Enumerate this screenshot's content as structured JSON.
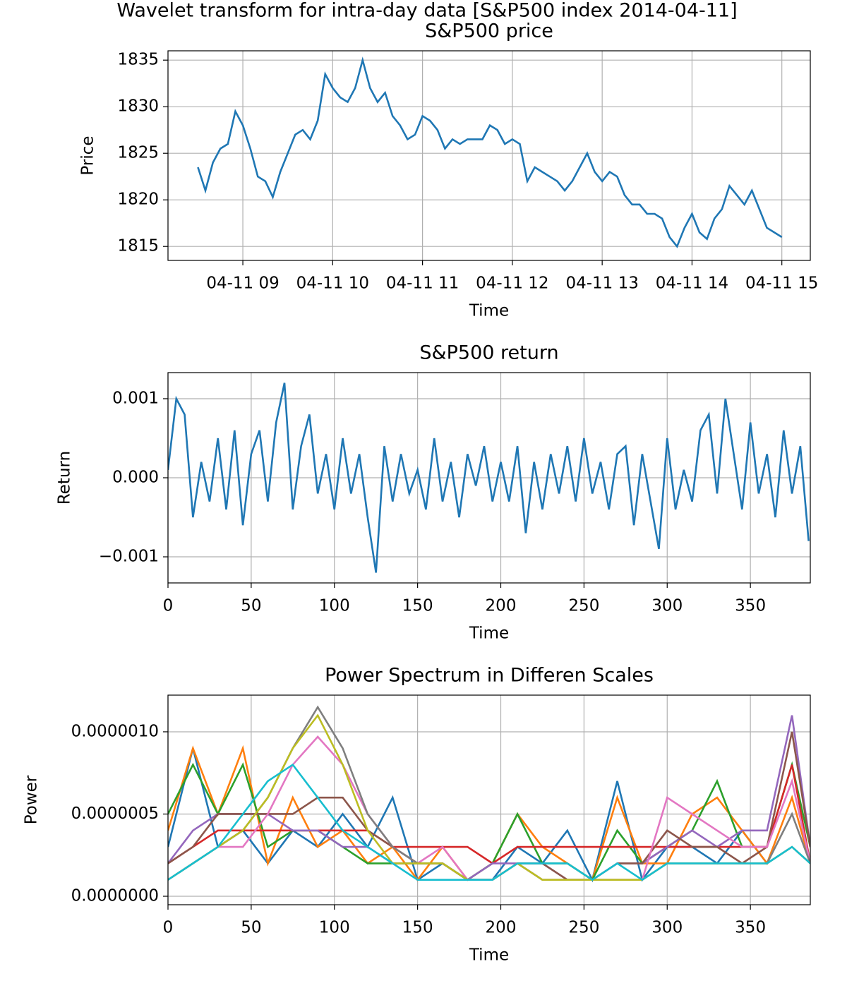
{
  "title": "Wavelet transform for intra-day data [S&P500 index 2014-04-11]",
  "chart_data": [
    {
      "type": "line",
      "title": "S&P500 price",
      "xlabel": "Time",
      "ylabel": "Price",
      "grid": true,
      "x": [
        0,
        5,
        10,
        15,
        20,
        25,
        30,
        35,
        40,
        45,
        50,
        55,
        60,
        65,
        70,
        75,
        80,
        85,
        90,
        95,
        100,
        105,
        110,
        115,
        120,
        125,
        130,
        135,
        140,
        145,
        150,
        155,
        160,
        165,
        170,
        175,
        180,
        185,
        190,
        195,
        200,
        205,
        210,
        215,
        220,
        225,
        230,
        235,
        240,
        245,
        250,
        255,
        260,
        265,
        270,
        275,
        280,
        285,
        290,
        295,
        300,
        305,
        310,
        315,
        320,
        325,
        330,
        335,
        340,
        345,
        350,
        355,
        360,
        365,
        370,
        375,
        380,
        385,
        390
      ],
      "series": [
        {
          "color": "#1f77b4",
          "values": [
            1823.5,
            1821,
            1824,
            1825.5,
            1826,
            1829.5,
            1828,
            1825.5,
            1822.5,
            1822,
            1820.3,
            1823,
            1825,
            1827,
            1827.5,
            1826.5,
            1828.5,
            1833.5,
            1832,
            1831,
            1830.5,
            1832,
            1835,
            1832,
            1830.5,
            1831.5,
            1829,
            1828,
            1826.5,
            1827,
            1829,
            1828.5,
            1827.5,
            1825.5,
            1826.5,
            1826,
            1826.5,
            1826.5,
            1826.5,
            1828,
            1827.5,
            1826,
            1826.5,
            1826,
            1822,
            1823.5,
            1823,
            1822.5,
            1822,
            1821,
            1822,
            1823.5,
            1825,
            1823,
            1822,
            1823,
            1822.5,
            1820.5,
            1819.5,
            1819.5,
            1818.5,
            1818.5,
            1818,
            1816,
            1815,
            1817,
            1818.5,
            1816.5,
            1815.8,
            1818,
            1819,
            1821.5,
            1820.5,
            1819.5,
            1821,
            1819,
            1817,
            1816.5,
            1816
          ]
        }
      ],
      "xlim": [
        -20,
        409
      ],
      "xticks": [
        {
          "value": 30,
          "label": "04-11 09"
        },
        {
          "value": 90,
          "label": "04-11 10"
        },
        {
          "value": 150,
          "label": "04-11 11"
        },
        {
          "value": 210,
          "label": "04-11 12"
        },
        {
          "value": 270,
          "label": "04-11 13"
        },
        {
          "value": 330,
          "label": "04-11 14"
        },
        {
          "value": 390,
          "label": "04-11 15"
        }
      ],
      "ylim": [
        1813.5,
        1836
      ],
      "yticks": [
        1815,
        1820,
        1825,
        1830,
        1835
      ]
    },
    {
      "type": "line",
      "title": "S&P500 return",
      "xlabel": "Time",
      "ylabel": "Return",
      "grid": true,
      "x": [
        0,
        5,
        10,
        15,
        20,
        25,
        30,
        35,
        40,
        45,
        50,
        55,
        60,
        65,
        70,
        75,
        80,
        85,
        90,
        95,
        100,
        105,
        110,
        115,
        120,
        125,
        130,
        135,
        140,
        145,
        150,
        155,
        160,
        165,
        170,
        175,
        180,
        185,
        190,
        195,
        200,
        205,
        210,
        215,
        220,
        225,
        230,
        235,
        240,
        245,
        250,
        255,
        260,
        265,
        270,
        275,
        280,
        285,
        290,
        295,
        300,
        305,
        310,
        315,
        320,
        325,
        330,
        335,
        340,
        345,
        350,
        355,
        360,
        365,
        370,
        375,
        380,
        385
      ],
      "series": [
        {
          "color": "#1f77b4",
          "values": [
            0.0001,
            0.001,
            0.0008,
            -0.0005,
            0.0002,
            -0.0003,
            0.0005,
            -0.0004,
            0.0006,
            -0.0006,
            0.0003,
            0.0006,
            -0.0003,
            0.0007,
            0.0012,
            -0.0004,
            0.0004,
            0.0008,
            -0.0002,
            0.0003,
            -0.0004,
            0.0005,
            -0.0002,
            0.0003,
            -0.0005,
            -0.0012,
            0.0004,
            -0.0003,
            0.0003,
            -0.0002,
            0.0001,
            -0.0004,
            0.0005,
            -0.0003,
            0.0002,
            -0.0005,
            0.0003,
            -0.0001,
            0.0004,
            -0.0003,
            0.0002,
            -0.0003,
            0.0004,
            -0.0007,
            0.0002,
            -0.0004,
            0.0003,
            -0.0002,
            0.0004,
            -0.0003,
            0.0005,
            -0.0002,
            0.0002,
            -0.0004,
            0.0003,
            0.0004,
            -0.0006,
            0.0003,
            -0.0003,
            -0.0009,
            0.0005,
            -0.0004,
            0.0001,
            -0.0003,
            0.0006,
            0.0008,
            -0.0002,
            0.001,
            0.0003,
            -0.0004,
            0.0007,
            -0.0002,
            0.0003,
            -0.0005,
            0.0006,
            -0.0002,
            0.0004,
            -0.0008
          ]
        }
      ],
      "xlim": [
        0,
        386
      ],
      "xticks": [
        0,
        50,
        100,
        150,
        200,
        250,
        300,
        350
      ],
      "ylim": [
        -0.00133,
        0.00133
      ],
      "yticks": [
        {
          "value": -0.001,
          "label": "−0.001"
        },
        {
          "value": 0,
          "label": "0.000"
        },
        {
          "value": 0.001,
          "label": "0.001"
        }
      ]
    },
    {
      "type": "line",
      "title": "Power Spectrum in Differen Scales",
      "xlabel": "Time",
      "ylabel": "Power",
      "grid": true,
      "x": [
        0,
        15,
        30,
        45,
        60,
        75,
        90,
        105,
        120,
        135,
        150,
        165,
        180,
        195,
        210,
        225,
        240,
        255,
        270,
        285,
        300,
        315,
        330,
        345,
        360,
        375,
        386
      ],
      "series": [
        {
          "color": "#1f77b4",
          "values": [
            3e-07,
            9e-07,
            3e-07,
            4e-07,
            2e-07,
            4e-07,
            3e-07,
            5e-07,
            3e-07,
            6e-07,
            1e-07,
            2e-07,
            1e-07,
            1e-07,
            3e-07,
            2e-07,
            4e-07,
            1e-07,
            7e-07,
            1e-07,
            3e-07,
            3e-07,
            2e-07,
            4e-07,
            2e-07,
            3e-07,
            2e-07
          ]
        },
        {
          "color": "#ff7f0e",
          "values": [
            4e-07,
            9e-07,
            5e-07,
            9e-07,
            2e-07,
            6e-07,
            3e-07,
            4e-07,
            2e-07,
            3e-07,
            1e-07,
            3e-07,
            1e-07,
            2e-07,
            5e-07,
            3e-07,
            2e-07,
            1e-07,
            6e-07,
            2e-07,
            2e-07,
            5e-07,
            6e-07,
            4e-07,
            2e-07,
            6e-07,
            2e-07
          ]
        },
        {
          "color": "#2ca02c",
          "values": [
            5e-07,
            8e-07,
            5e-07,
            8e-07,
            3e-07,
            4e-07,
            4e-07,
            3e-07,
            2e-07,
            2e-07,
            2e-07,
            2e-07,
            1e-07,
            2e-07,
            5e-07,
            2e-07,
            2e-07,
            1e-07,
            4e-07,
            2e-07,
            3e-07,
            4e-07,
            7e-07,
            3e-07,
            3e-07,
            8e-07,
            3e-07
          ]
        },
        {
          "color": "#d62728",
          "values": [
            2e-07,
            3e-07,
            4e-07,
            4e-07,
            4e-07,
            4e-07,
            4e-07,
            4e-07,
            4e-07,
            3e-07,
            3e-07,
            3e-07,
            3e-07,
            2e-07,
            3e-07,
            3e-07,
            3e-07,
            3e-07,
            3e-07,
            3e-07,
            3e-07,
            3e-07,
            3e-07,
            3e-07,
            3e-07,
            8e-07,
            2e-07
          ]
        },
        {
          "color": "#9467bd",
          "values": [
            2e-07,
            4e-07,
            5e-07,
            5e-07,
            5e-07,
            4e-07,
            4e-07,
            3e-07,
            3e-07,
            2e-07,
            2e-07,
            2e-07,
            1e-07,
            2e-07,
            2e-07,
            2e-07,
            1e-07,
            1e-07,
            2e-07,
            2e-07,
            3e-07,
            4e-07,
            3e-07,
            4e-07,
            4e-07,
            1.1e-06,
            3e-07
          ]
        },
        {
          "color": "#8c564b",
          "values": [
            2e-07,
            3e-07,
            5e-07,
            5e-07,
            5e-07,
            5e-07,
            6e-07,
            6e-07,
            4e-07,
            3e-07,
            2e-07,
            2e-07,
            1e-07,
            1e-07,
            2e-07,
            2e-07,
            1e-07,
            1e-07,
            2e-07,
            2e-07,
            4e-07,
            3e-07,
            3e-07,
            2e-07,
            3e-07,
            1e-06,
            3e-07
          ]
        },
        {
          "color": "#e377c2",
          "values": [
            1e-07,
            2e-07,
            3e-07,
            3e-07,
            5e-07,
            8e-07,
            9.7e-07,
            8e-07,
            5e-07,
            3e-07,
            2e-07,
            3e-07,
            1e-07,
            1e-07,
            2e-07,
            1e-07,
            1e-07,
            1e-07,
            1e-07,
            1e-07,
            6e-07,
            5e-07,
            4e-07,
            3e-07,
            3e-07,
            7e-07,
            2e-07
          ]
        },
        {
          "color": "#7f7f7f",
          "values": [
            1e-07,
            2e-07,
            3e-07,
            4e-07,
            6e-07,
            9e-07,
            1.15e-06,
            9e-07,
            5e-07,
            3e-07,
            2e-07,
            2e-07,
            1e-07,
            1e-07,
            2e-07,
            1e-07,
            1e-07,
            1e-07,
            1e-07,
            1e-07,
            2e-07,
            2e-07,
            2e-07,
            2e-07,
            2e-07,
            5e-07,
            2e-07
          ]
        },
        {
          "color": "#bcbd22",
          "values": [
            1e-07,
            2e-07,
            3e-07,
            4e-07,
            6e-07,
            9e-07,
            1.1e-06,
            8e-07,
            4e-07,
            2e-07,
            2e-07,
            2e-07,
            1e-07,
            1e-07,
            2e-07,
            1e-07,
            1e-07,
            1e-07,
            1e-07,
            1e-07,
            2e-07,
            2e-07,
            2e-07,
            2e-07,
            2e-07,
            3e-07,
            2e-07
          ]
        },
        {
          "color": "#17becf",
          "values": [
            1e-07,
            2e-07,
            3e-07,
            5e-07,
            7e-07,
            8e-07,
            6e-07,
            4e-07,
            3e-07,
            2e-07,
            1e-07,
            1e-07,
            1e-07,
            1e-07,
            2e-07,
            2e-07,
            2e-07,
            1e-07,
            2e-07,
            1e-07,
            2e-07,
            2e-07,
            2e-07,
            2e-07,
            2e-07,
            3e-07,
            2e-07
          ]
        }
      ],
      "xlim": [
        0,
        386
      ],
      "xticks": [
        0,
        50,
        100,
        150,
        200,
        250,
        300,
        350
      ],
      "ylim": [
        -5.15e-08,
        1.223e-06
      ],
      "yticks": [
        {
          "value": 0,
          "label": "0.0000000"
        },
        {
          "value": 5e-07,
          "label": "0.0000005"
        },
        {
          "value": 1e-06,
          "label": "0.0000010"
        }
      ]
    }
  ]
}
